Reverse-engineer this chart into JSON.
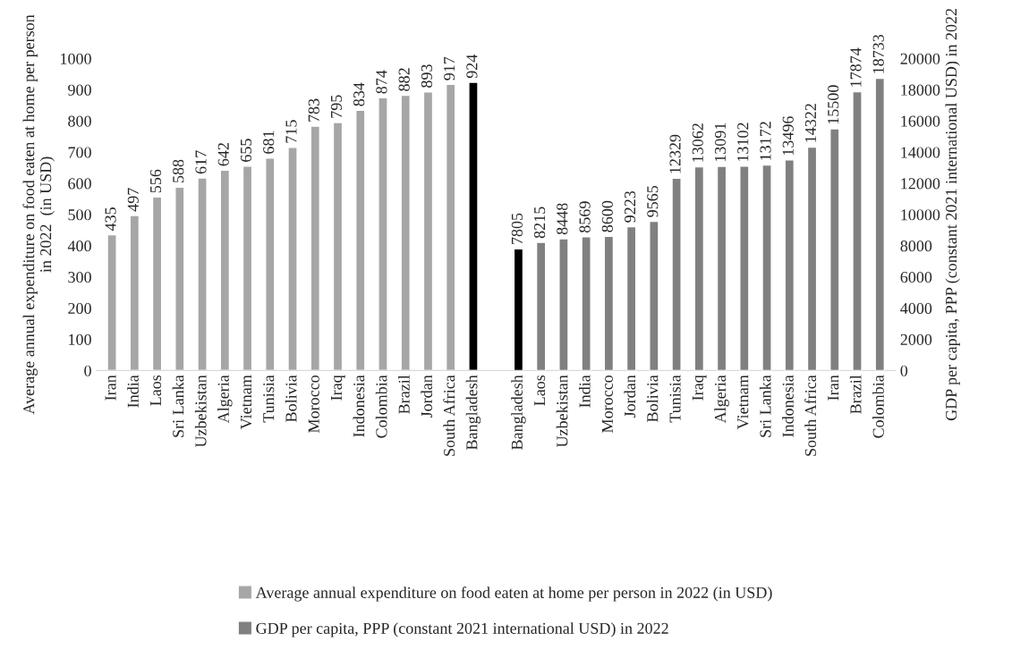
{
  "chart_data": {
    "type": "bar",
    "categories": [
      "Iran",
      "India",
      "Laos",
      "Sri Lanka",
      "Uzbekistan",
      "Algeria",
      "Vietnam",
      "Tunisia",
      "Bolivia",
      "Morocco",
      "Iraq",
      "Indonesia",
      "Colombia",
      "Brazil",
      "Jordan",
      "South Africa",
      "Bangladesh",
      null,
      "Bangladesh",
      "Laos",
      "Uzbekistan",
      "India",
      "Morocco",
      "Jordan",
      "Bolivia",
      "Tunisia",
      "Iraq",
      "Algeria",
      "Vietnam",
      "Sri Lanka",
      "Indonesia",
      "South Africa",
      "Iran",
      "Brazil",
      "Colombia"
    ],
    "series": [
      {
        "name": "Average annual expenditure on food eaten at home per person in 2022 (in USD)",
        "color": "#a6a6a6",
        "colors": [
          "#a6a6a6",
          "#a6a6a6",
          "#a6a6a6",
          "#a6a6a6",
          "#a6a6a6",
          "#a6a6a6",
          "#a6a6a6",
          "#a6a6a6",
          "#a6a6a6",
          "#a6a6a6",
          "#a6a6a6",
          "#a6a6a6",
          "#a6a6a6",
          "#a6a6a6",
          "#a6a6a6",
          "#a6a6a6",
          "#000000",
          null,
          null,
          null,
          null,
          null,
          null,
          null,
          null,
          null,
          null,
          null,
          null,
          null,
          null,
          null,
          null,
          null,
          null
        ],
        "values": [
          435,
          497,
          556,
          588,
          617,
          642,
          655,
          681,
          715,
          783,
          795,
          834,
          874,
          882,
          893,
          917,
          924,
          null,
          null,
          null,
          null,
          null,
          null,
          null,
          null,
          null,
          null,
          null,
          null,
          null,
          null,
          null,
          null,
          null,
          null
        ]
      },
      {
        "name": "GDP per capita, PPP (constant 2021 international USD) in 2022",
        "color": "#808080",
        "axis": "y2",
        "colors": [
          null,
          null,
          null,
          null,
          null,
          null,
          null,
          null,
          null,
          null,
          null,
          null,
          null,
          null,
          null,
          null,
          null,
          null,
          "#000000",
          "#808080",
          "#808080",
          "#808080",
          "#808080",
          "#808080",
          "#808080",
          "#808080",
          "#808080",
          "#808080",
          "#808080",
          "#808080",
          "#808080",
          "#808080",
          "#808080",
          "#808080",
          "#808080"
        ],
        "values": [
          null,
          null,
          null,
          null,
          null,
          null,
          null,
          null,
          null,
          null,
          null,
          null,
          null,
          null,
          null,
          null,
          null,
          null,
          7805,
          8215,
          8448,
          8569,
          8600,
          9223,
          9565,
          12329,
          13062,
          13091,
          13102,
          13172,
          13496,
          14322,
          15500,
          17874,
          18733
        ]
      }
    ],
    "ylabel": "Average annual expenditure on food eaten at home per person\nin 2022  (in USD)",
    "y2label": "GDP per capita, PPP (constant 2021 international USD) in 2022",
    "ylim": [
      0,
      1000
    ],
    "yticks": [
      0,
      100,
      200,
      300,
      400,
      500,
      600,
      700,
      800,
      900,
      1000
    ],
    "y2lim": [
      0,
      20000
    ],
    "y2ticks": [
      0,
      2000,
      4000,
      6000,
      8000,
      10000,
      12000,
      14000,
      16000,
      18000,
      20000
    ],
    "data_labels": true,
    "grid": false,
    "legend": "bottom"
  }
}
